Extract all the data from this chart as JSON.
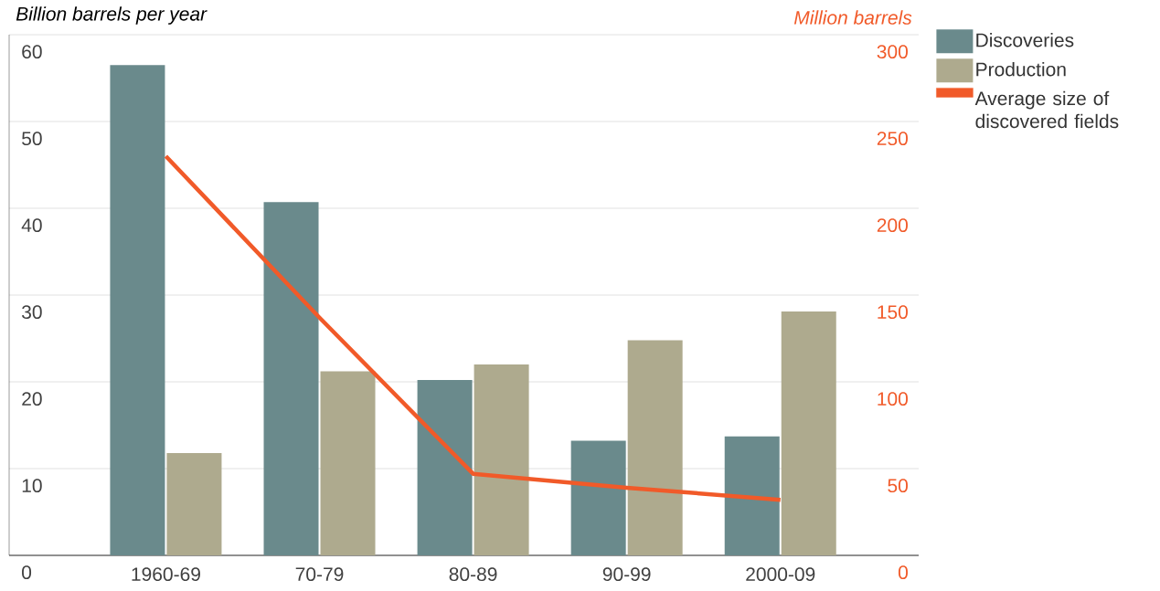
{
  "chart_data": {
    "type": "bar",
    "ylabel": "Billion barrels per year",
    "y2label": "Million barrels",
    "categories": [
      "1960-69",
      "70-79",
      "80-89",
      "90-99",
      "2000-09"
    ],
    "series": [
      {
        "name": "Discoveries",
        "color": "#6a8a8c",
        "values": [
          56.5,
          40.7,
          20.2,
          13.2,
          13.7
        ]
      },
      {
        "name": "Production",
        "color": "#aeaa8e",
        "values": [
          11.8,
          21.2,
          22.0,
          24.8,
          28.1
        ]
      },
      {
        "name": "Average size of discovered fields",
        "type": "line",
        "axis": "y2",
        "color": "#f15a29",
        "values": [
          230,
          137,
          47,
          39,
          32
        ]
      }
    ],
    "ylim": [
      0,
      60
    ],
    "yticks": [
      0,
      10,
      20,
      30,
      40,
      50,
      60
    ],
    "y2lim": [
      0,
      300
    ],
    "y2ticks": [
      0,
      50,
      100,
      150,
      200,
      250,
      300
    ],
    "grid": "y",
    "legend": "right"
  }
}
